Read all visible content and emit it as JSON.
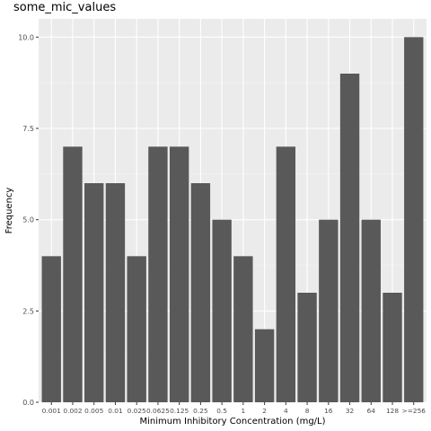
{
  "chart_data": {
    "type": "bar",
    "title": "some_mic_values",
    "xlabel": "Minimum Inhibitory Concentration (mg/L)",
    "ylabel": "Frequency",
    "categories": [
      "0.001",
      "0.002",
      "0.005",
      "0.01",
      "0.025",
      "0.0625",
      "0.125",
      "0.25",
      "0.5",
      "1",
      "2",
      "4",
      "8",
      "16",
      "32",
      "64",
      "128",
      ">=256"
    ],
    "values": [
      4,
      7,
      6,
      6,
      4,
      7,
      7,
      6,
      5,
      4,
      2,
      7,
      3,
      5,
      9,
      5,
      3,
      10
    ],
    "ylim": [
      0,
      10.5
    ],
    "yticks": [
      0.0,
      2.5,
      5.0,
      7.5,
      10.0
    ],
    "ytick_labels": [
      "0.0",
      "2.5",
      "5.0",
      "7.5",
      "10.0"
    ],
    "grid": true,
    "legend": "none",
    "colors": {
      "bar": "#595959",
      "panel": "#ebebeb",
      "grid_major": "#ffffff",
      "grid_minor": "#f5f5f5"
    }
  }
}
